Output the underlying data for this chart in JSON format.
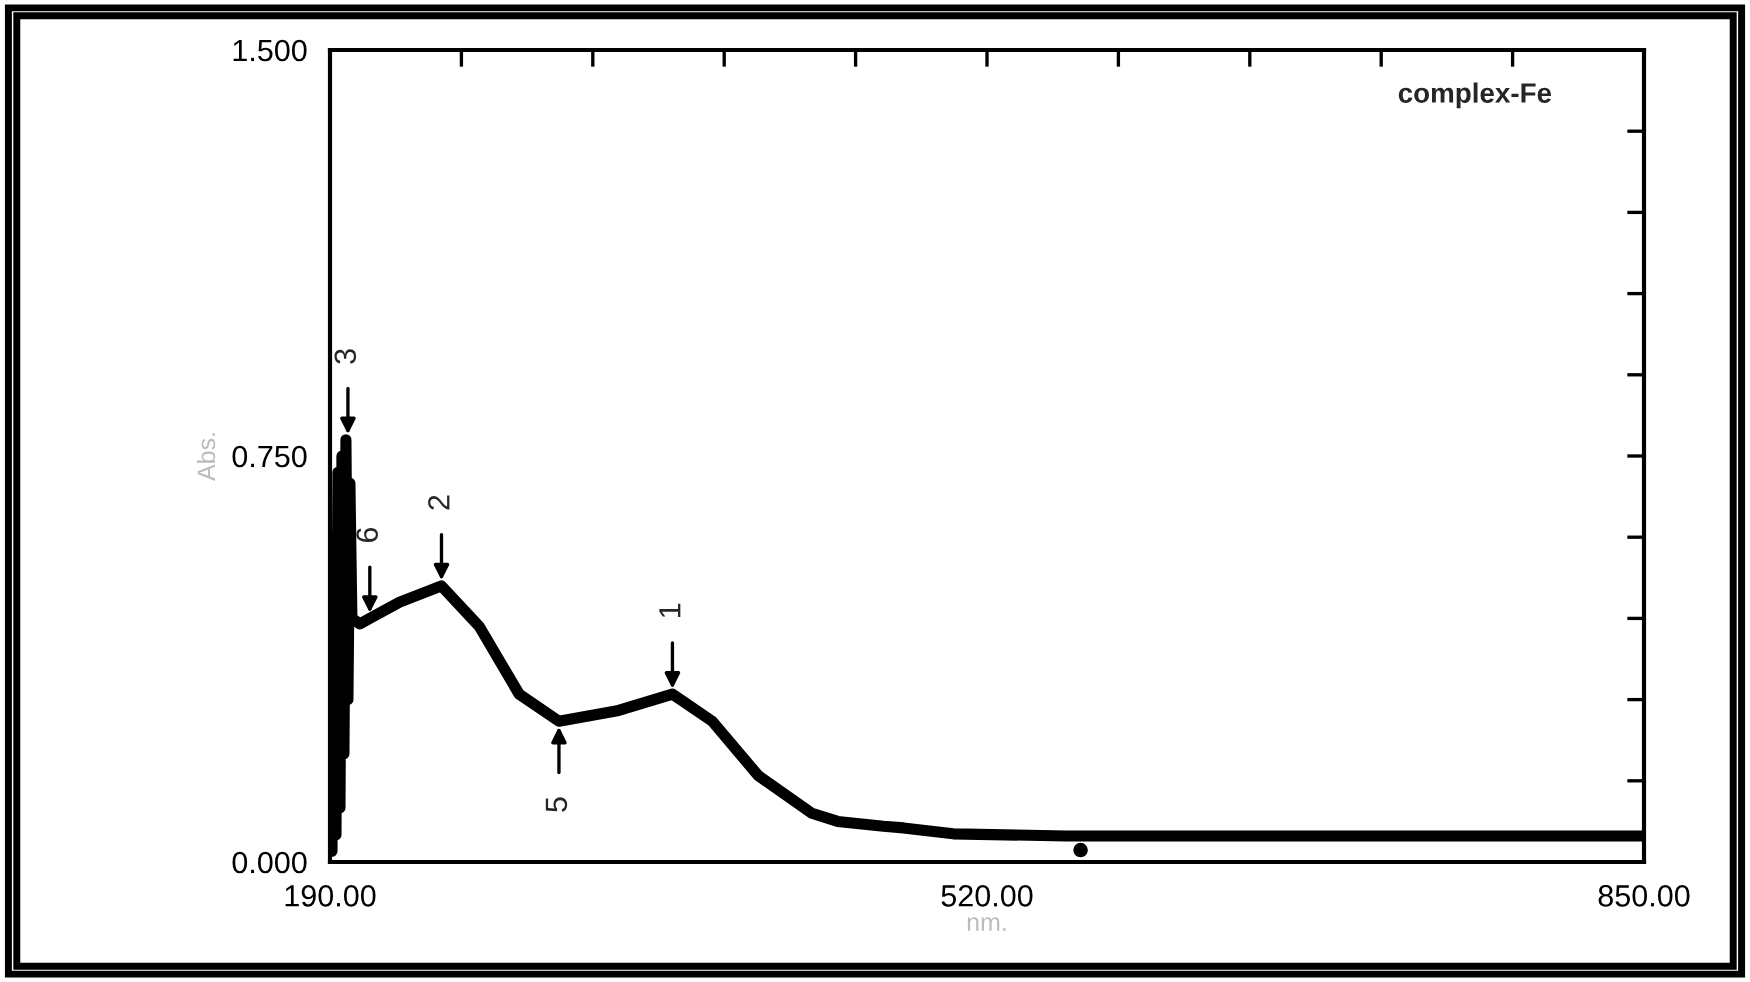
{
  "chart_data": {
    "type": "line",
    "xlabel": "nm.",
    "ylabel": "Abs.",
    "xlim": [
      190,
      850
    ],
    "ylim": [
      0,
      1.5
    ],
    "xticks": [
      {
        "value": 190,
        "label": "190.00"
      },
      {
        "value": 256,
        "label": null
      },
      {
        "value": 322,
        "label": null
      },
      {
        "value": 388,
        "label": null
      },
      {
        "value": 454,
        "label": null
      },
      {
        "value": 520,
        "label": "520.00"
      },
      {
        "value": 586,
        "label": null
      },
      {
        "value": 652,
        "label": null
      },
      {
        "value": 718,
        "label": null
      },
      {
        "value": 784,
        "label": null
      },
      {
        "value": 850,
        "label": "850.00"
      }
    ],
    "yticks": [
      {
        "value": 0,
        "label": "0.000"
      },
      {
        "value": 0.15,
        "label": null
      },
      {
        "value": 0.3,
        "label": null
      },
      {
        "value": 0.45,
        "label": null
      },
      {
        "value": 0.6,
        "label": null
      },
      {
        "value": 0.75,
        "label": "0.750"
      },
      {
        "value": 0.9,
        "label": null
      },
      {
        "value": 1.05,
        "label": null
      },
      {
        "value": 1.2,
        "label": null
      },
      {
        "value": 1.35,
        "label": null
      },
      {
        "value": 1.5,
        "label": "1.500"
      }
    ],
    "grid": false,
    "legend": false,
    "series": [
      {
        "color": "#000000",
        "x": [
          191,
          192,
          193,
          194,
          195,
          196,
          197,
          198,
          199,
          200,
          201,
          205,
          210,
          225,
          246,
          265,
          285,
          305,
          335,
          362,
          382,
          405,
          432,
          445,
          468,
          478,
          503,
          560,
          700,
          850
        ],
        "values": [
          0.02,
          0.6,
          0.05,
          0.72,
          0.1,
          0.75,
          0.2,
          0.78,
          0.3,
          0.7,
          0.45,
          0.44,
          0.45,
          0.48,
          0.51,
          0.435,
          0.31,
          0.26,
          0.28,
          0.31,
          0.26,
          0.16,
          0.09,
          0.075,
          0.066,
          0.063,
          0.052,
          0.048,
          0.048,
          0.048
        ]
      },
      {
        "type": "scatter",
        "color": "#000000",
        "x": [
          567
        ],
        "values": [
          0.022
        ]
      }
    ],
    "annotations": [
      {
        "text": "3",
        "x": 199,
        "y": 0.78
      },
      {
        "text": "6",
        "x": 210,
        "y": 0.45
      },
      {
        "text": "2",
        "x": 246,
        "y": 0.51
      },
      {
        "text": "5",
        "x": 305,
        "y": 0.26
      },
      {
        "text": "1",
        "x": 362,
        "y": 0.31
      },
      "complex-Fe"
    ]
  }
}
